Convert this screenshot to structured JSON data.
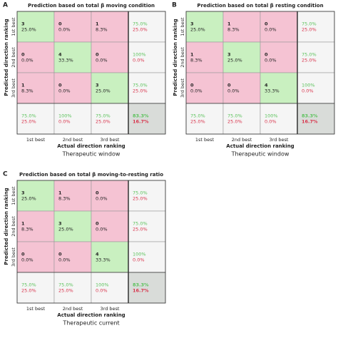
{
  "panels": [
    {
      "letter": "A",
      "title": "Prediction based on total β moving condition",
      "y_label": "Predicted direction ranking",
      "x_label": "Actual direction ranking",
      "caption": "Therapeutic window",
      "categories": [
        "1st best",
        "2nd best",
        "3rd best"
      ],
      "rows": [
        {
          "cells": [
            {
              "count": "3",
              "pct": "25.0%"
            },
            {
              "count": "0",
              "pct": "0.0%"
            },
            {
              "count": "1",
              "pct": "8.3%"
            }
          ],
          "summary": {
            "good": "75.0%",
            "bad": "25.0%"
          }
        },
        {
          "cells": [
            {
              "count": "0",
              "pct": "0.0%"
            },
            {
              "count": "4",
              "pct": "33.3%"
            },
            {
              "count": "0",
              "pct": "0.0%"
            }
          ],
          "summary": {
            "good": "100%",
            "bad": "0.0%"
          }
        },
        {
          "cells": [
            {
              "count": "1",
              "pct": "8.3%"
            },
            {
              "count": "0",
              "pct": "0.0%"
            },
            {
              "count": "3",
              "pct": "25.0%"
            }
          ],
          "summary": {
            "good": "75.0%",
            "bad": "25.0%"
          }
        }
      ],
      "column_summary": [
        {
          "good": "75.0%",
          "bad": "25.0%"
        },
        {
          "good": "100%",
          "bad": "0.0%"
        },
        {
          "good": "75.0%",
          "bad": "25.0%"
        }
      ],
      "total": {
        "good": "83.3%",
        "bad": "16.7%"
      }
    },
    {
      "letter": "B",
      "title": "Prediction based on total β resting condition",
      "y_label": "Predicted direction ranking",
      "x_label": "Actual direction ranking",
      "caption": "Therapeutic window",
      "categories": [
        "1st best",
        "2nd best",
        "3rd best"
      ],
      "rows": [
        {
          "cells": [
            {
              "count": "3",
              "pct": "25.0%"
            },
            {
              "count": "1",
              "pct": "8.3%"
            },
            {
              "count": "0",
              "pct": "0.0%"
            }
          ],
          "summary": {
            "good": "75.0%",
            "bad": "25.0%"
          }
        },
        {
          "cells": [
            {
              "count": "1",
              "pct": "8.3%"
            },
            {
              "count": "3",
              "pct": "25.0%"
            },
            {
              "count": "0",
              "pct": "0.0%"
            }
          ],
          "summary": {
            "good": "75.0%",
            "bad": "25.0%"
          }
        },
        {
          "cells": [
            {
              "count": "0",
              "pct": "0.0%"
            },
            {
              "count": "0",
              "pct": "0.0%"
            },
            {
              "count": "4",
              "pct": "33.3%"
            }
          ],
          "summary": {
            "good": "100%",
            "bad": "0.0%"
          }
        }
      ],
      "column_summary": [
        {
          "good": "75.0%",
          "bad": "25.0%"
        },
        {
          "good": "75.0%",
          "bad": "25.0%"
        },
        {
          "good": "100%",
          "bad": "0.0%"
        }
      ],
      "total": {
        "good": "83.3%",
        "bad": "16.7%"
      }
    },
    {
      "letter": "C",
      "title": "Prediction based on total β moving-to-resting ratio",
      "y_label": "Predicted direction ranking",
      "x_label": "Actual direction ranking",
      "caption": "Therapeutic current",
      "categories": [
        "1st best",
        "2nd best",
        "3rd best"
      ],
      "rows": [
        {
          "cells": [
            {
              "count": "3",
              "pct": "25.0%"
            },
            {
              "count": "1",
              "pct": "8.3%"
            },
            {
              "count": "0",
              "pct": "0.0%"
            }
          ],
          "summary": {
            "good": "75.0%",
            "bad": "25.0%"
          }
        },
        {
          "cells": [
            {
              "count": "1",
              "pct": "8.3%"
            },
            {
              "count": "3",
              "pct": "25.0%"
            },
            {
              "count": "0",
              "pct": "0.0%"
            }
          ],
          "summary": {
            "good": "75.0%",
            "bad": "25.0%"
          }
        },
        {
          "cells": [
            {
              "count": "0",
              "pct": "0.0%"
            },
            {
              "count": "0",
              "pct": "0.0%"
            },
            {
              "count": "4",
              "pct": "33.3%"
            }
          ],
          "summary": {
            "good": "100%",
            "bad": "0.0%"
          }
        }
      ],
      "column_summary": [
        {
          "good": "75.0%",
          "bad": "25.0%"
        },
        {
          "good": "75.0%",
          "bad": "25.0%"
        },
        {
          "good": "100%",
          "bad": "0.0%"
        }
      ],
      "total": {
        "good": "83.3%",
        "bad": "16.7%"
      }
    }
  ]
}
